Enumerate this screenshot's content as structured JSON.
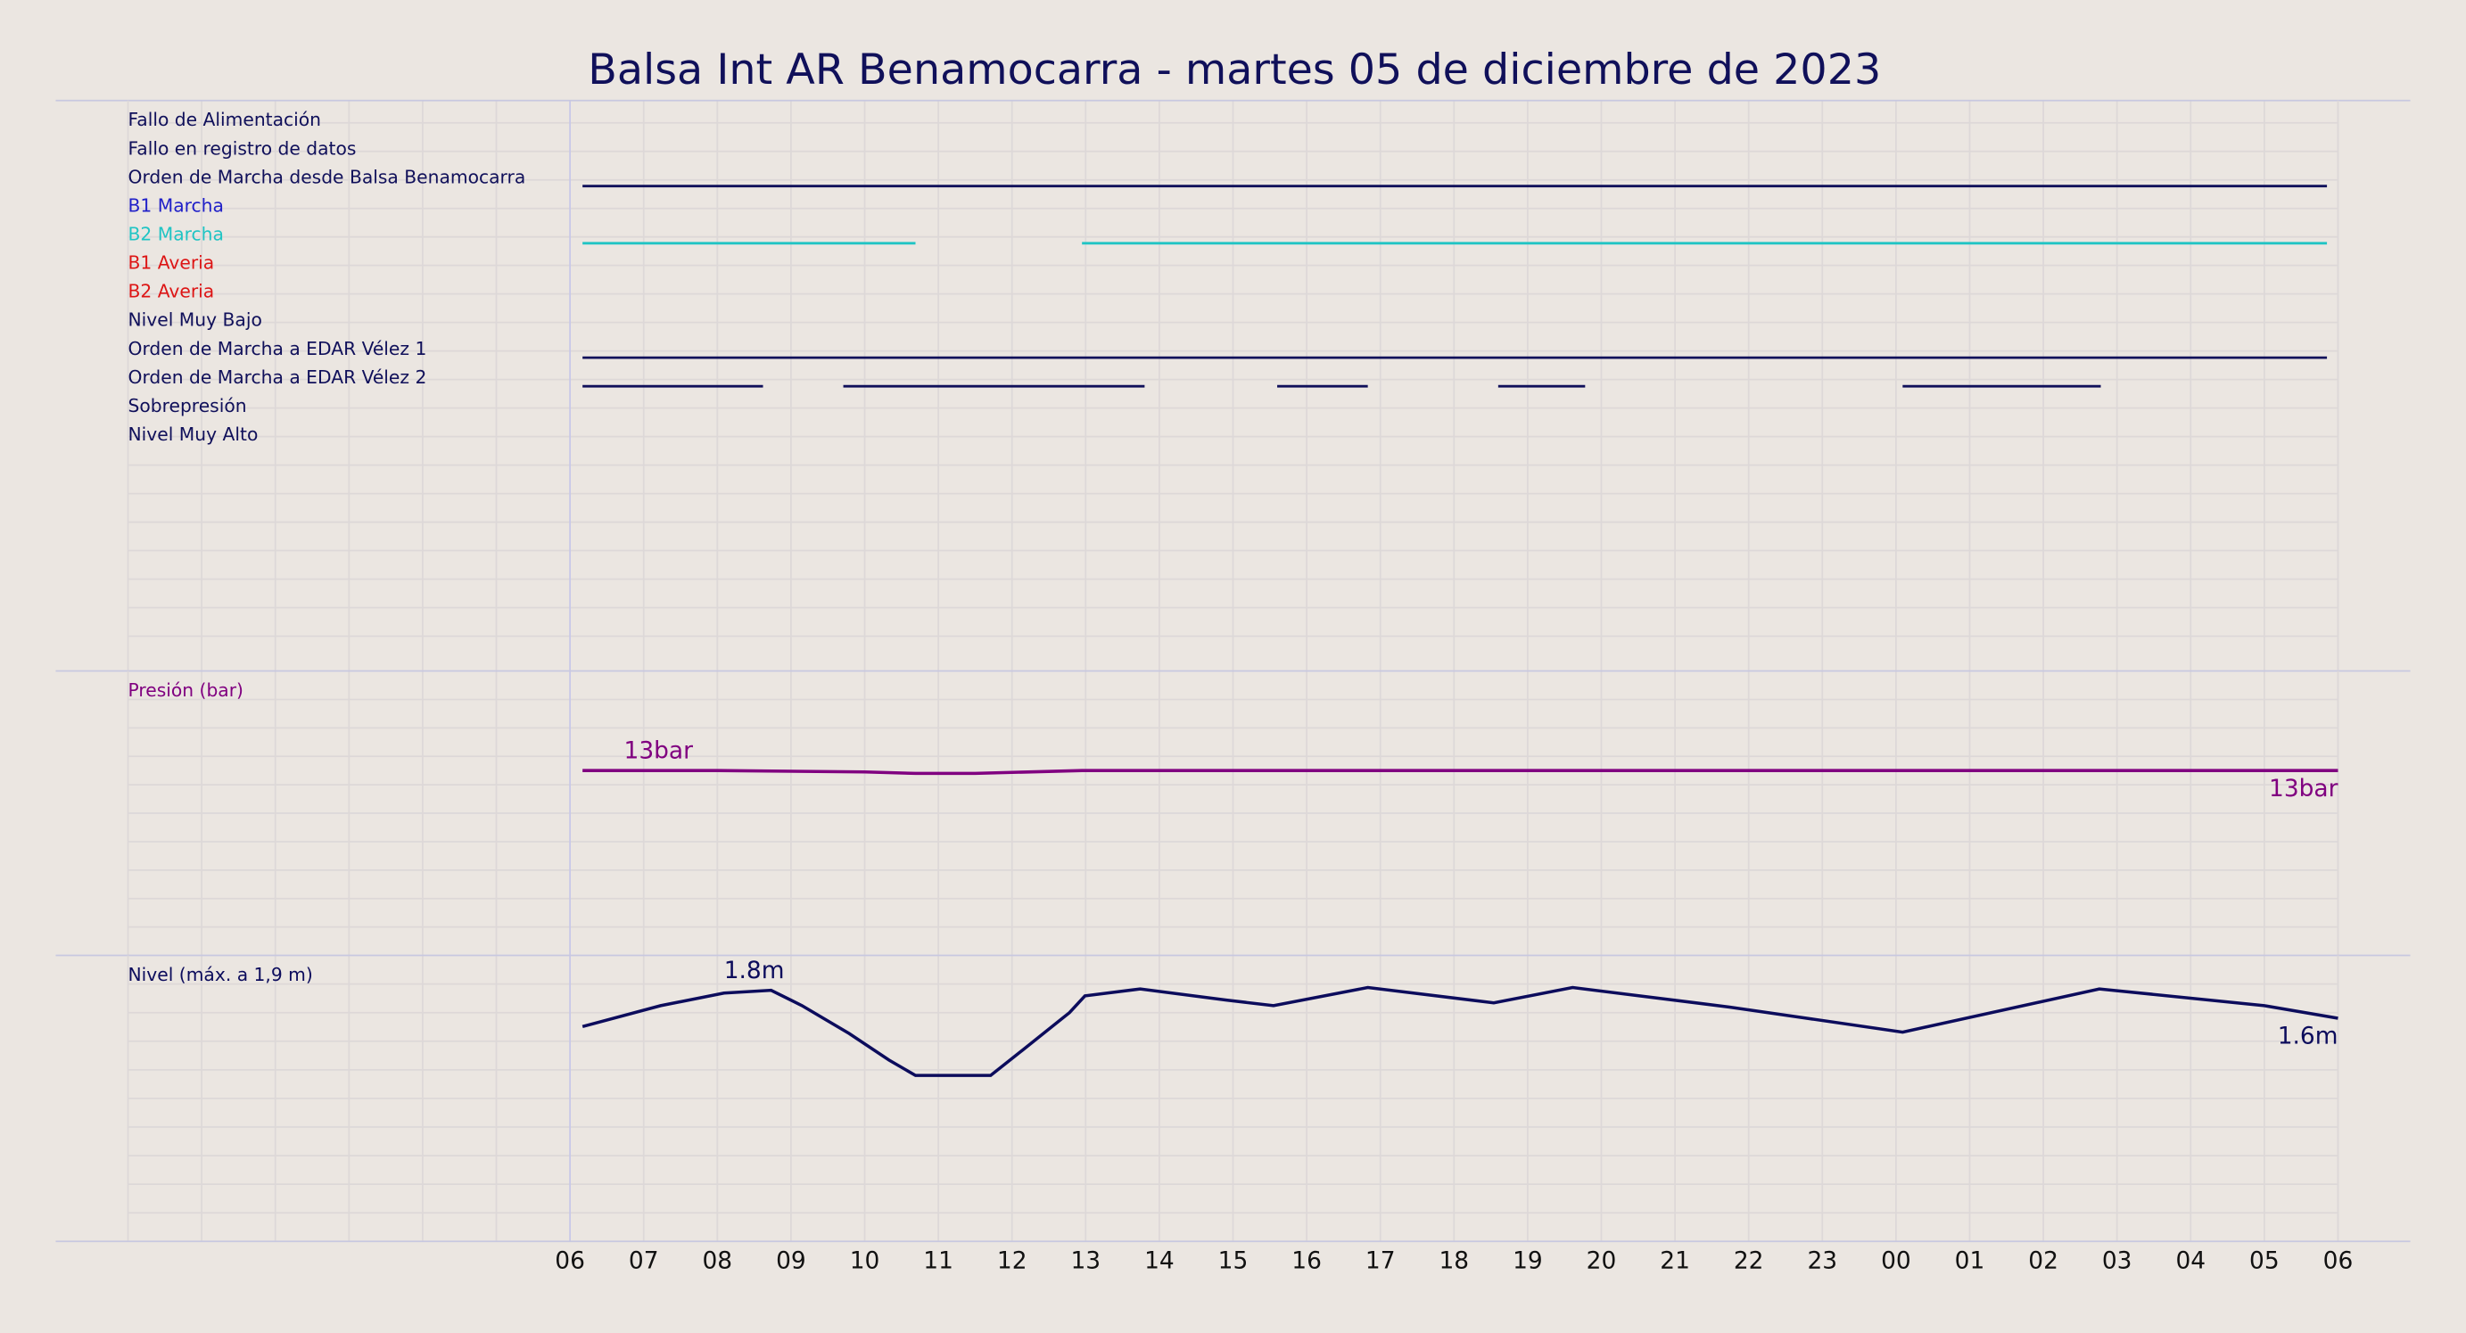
{
  "title": "Balsa Int AR Benamocarra   -   martes 05 de diciembre de 2023",
  "chart_data": [
    {
      "type": "timeline",
      "xlim": [
        0,
        30
      ],
      "signals": [
        {
          "name": "Fallo de Alimentación",
          "color": "#10105a",
          "segments": []
        },
        {
          "name": "Fallo en registro de datos",
          "color": "#10105a",
          "segments": []
        },
        {
          "name": "Orden de Marcha desde Balsa Benamocarra",
          "color": "#10105a",
          "segments": [
            [
              6.17,
              29.85
            ]
          ]
        },
        {
          "name": "B1 Marcha",
          "color": "#2020c8",
          "segments": []
        },
        {
          "name": "B2 Marcha",
          "color": "#20c4c4",
          "segments": [
            [
              6.17,
              10.69
            ],
            [
              12.95,
              29.85
            ]
          ]
        },
        {
          "name": "B1 Averia",
          "color": "#dd1515",
          "segments": []
        },
        {
          "name": "B2 Averia",
          "color": "#dd1515",
          "segments": []
        },
        {
          "name": "Nivel Muy Bajo",
          "color": "#10105a",
          "segments": []
        },
        {
          "name": "Orden de Marcha a EDAR Vélez 1",
          "color": "#10105a",
          "segments": [
            [
              6.17,
              29.85
            ]
          ]
        },
        {
          "name": "Orden de Marcha a EDAR Vélez 2",
          "color": "#10105a",
          "segments": [
            [
              6.17,
              8.62
            ],
            [
              9.71,
              13.8
            ],
            [
              15.6,
              16.83
            ],
            [
              18.6,
              19.78
            ],
            [
              24.09,
              26.78
            ]
          ]
        },
        {
          "name": "Sobrepresión",
          "color": "#10105a",
          "segments": []
        },
        {
          "name": "Nivel Muy Alto",
          "color": "#10105a",
          "segments": []
        }
      ]
    },
    {
      "type": "line",
      "ylabel": "Presión (bar)",
      "color": "#800080",
      "xlim": [
        0,
        30
      ],
      "ylim": [
        0,
        20
      ],
      "x": [
        6.17,
        8,
        10,
        10.69,
        11.5,
        12.95,
        15,
        17,
        20,
        25,
        28,
        30
      ],
      "values": [
        13,
        13,
        12.9,
        12.8,
        12.8,
        13,
        13,
        13,
        13,
        13,
        13,
        13
      ],
      "annotations": [
        {
          "text": "13bar",
          "x": 7.2,
          "y": 13
        },
        {
          "text": "13bar",
          "x": 30,
          "y": 13
        }
      ]
    },
    {
      "type": "line",
      "ylabel": "Nivel (máx. a 1,9 m)",
      "color": "#0c0c5c",
      "xlim": [
        0,
        30
      ],
      "ylim": [
        0,
        2.05
      ],
      "x": [
        6.17,
        7.23,
        8.09,
        8.73,
        9.15,
        9.79,
        10.33,
        10.69,
        11.71,
        12.14,
        12.78,
        12.99,
        13.74,
        14.91,
        15.55,
        16.83,
        18.54,
        19.61,
        21.74,
        24.09,
        26.76,
        29,
        30
      ],
      "values": [
        1.54,
        1.69,
        1.78,
        1.8,
        1.69,
        1.49,
        1.3,
        1.19,
        1.19,
        1.37,
        1.64,
        1.76,
        1.81,
        1.73,
        1.69,
        1.82,
        1.71,
        1.82,
        1.68,
        1.5,
        1.81,
        1.69,
        1.6
      ],
      "annotations": [
        {
          "text": "1.8m",
          "x": 8.5,
          "y": 1.8
        },
        {
          "text": "1.6m",
          "x": 30,
          "y": 1.6
        }
      ],
      "xticks": [
        {
          "value": 6,
          "label": "06"
        },
        {
          "value": 7,
          "label": "07"
        },
        {
          "value": 8,
          "label": "08"
        },
        {
          "value": 9,
          "label": "09"
        },
        10,
        11,
        12,
        13,
        14,
        15,
        16,
        17,
        18,
        19,
        20,
        21,
        22,
        23,
        {
          "value": 24,
          "label": "00"
        },
        {
          "value": 25,
          "label": "01"
        },
        {
          "value": 26,
          "label": "02"
        },
        {
          "value": 27,
          "label": "03"
        },
        {
          "value": 28,
          "label": "04"
        },
        {
          "value": 29,
          "label": "05"
        },
        {
          "value": 30,
          "label": "06"
        }
      ]
    }
  ]
}
